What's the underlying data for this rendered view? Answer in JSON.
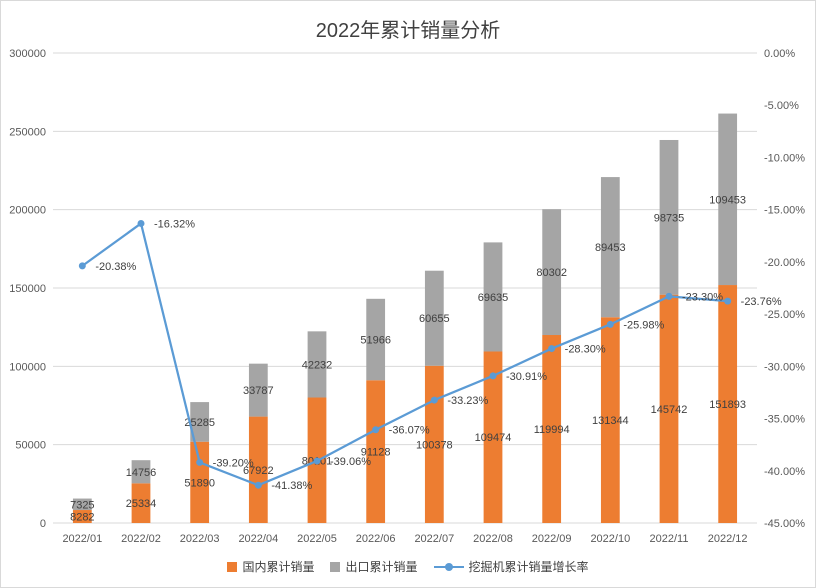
{
  "chart_data": {
    "type": "bar",
    "title": "2022年累计销量分析",
    "categories": [
      "2022/01",
      "2022/02",
      "2022/03",
      "2022/04",
      "2022/05",
      "2022/06",
      "2022/07",
      "2022/08",
      "2022/09",
      "2022/10",
      "2022/11",
      "2022/12"
    ],
    "series": [
      {
        "name": "国内累计销量",
        "type": "stacked-bar",
        "axis": "left",
        "color": "#ed7d31",
        "values": [
          8282,
          25334,
          51890,
          67922,
          80101,
          91128,
          100378,
          109474,
          119994,
          131344,
          145742,
          151893
        ],
        "labels": [
          "8282",
          "25334",
          "51890",
          "67922",
          "80101",
          "91128",
          "100378",
          "109474",
          "119994",
          "131344",
          "145742",
          "151893"
        ]
      },
      {
        "name": "出口累计销量",
        "type": "stacked-bar",
        "axis": "left",
        "color": "#a5a5a5",
        "values": [
          7325,
          14756,
          25285,
          33787,
          42232,
          51966,
          60655,
          69635,
          80302,
          89453,
          98735,
          109453
        ],
        "labels": [
          "7325",
          "14756",
          "25285",
          "33787",
          "42232",
          "51966",
          "60655",
          "69635",
          "80302",
          "89453",
          "98735",
          "109453"
        ]
      },
      {
        "name": "挖掘机累计销量增长率",
        "type": "line",
        "axis": "right",
        "color": "#5b9bd5",
        "values": [
          -20.38,
          -16.32,
          -39.2,
          -41.38,
          -39.06,
          -36.07,
          -33.23,
          -30.91,
          -28.3,
          -25.98,
          -23.3,
          -23.76
        ],
        "labels": [
          "-20.38%",
          "-16.32%",
          "-39.20%",
          "-41.38%",
          "-39.06%",
          "-36.07%",
          "-33.23%",
          "-30.91%",
          "-28.30%",
          "-25.98%",
          "-23.30%",
          "-23.76%"
        ]
      }
    ],
    "left_axis": {
      "ylim": [
        0,
        300000
      ],
      "ticks": [
        0,
        50000,
        100000,
        150000,
        200000,
        250000,
        300000
      ],
      "tick_labels": [
        "0",
        "50000",
        "100000",
        "150000",
        "200000",
        "250000",
        "300000"
      ]
    },
    "right_axis": {
      "ylim": [
        -45,
        0
      ],
      "ticks": [
        0,
        -5,
        -10,
        -15,
        -20,
        -25,
        -30,
        -35,
        -40,
        -45
      ],
      "tick_labels": [
        "0.00%",
        "-5.00%",
        "-10.00%",
        "-15.00%",
        "-20.00%",
        "-25.00%",
        "-30.00%",
        "-35.00%",
        "-40.00%",
        "-45.00%"
      ]
    },
    "grid": true,
    "legend_position": "bottom"
  },
  "colors": {
    "gridline": "#d9d9d9",
    "axis_text": "#595959",
    "label_text": "#404040"
  }
}
